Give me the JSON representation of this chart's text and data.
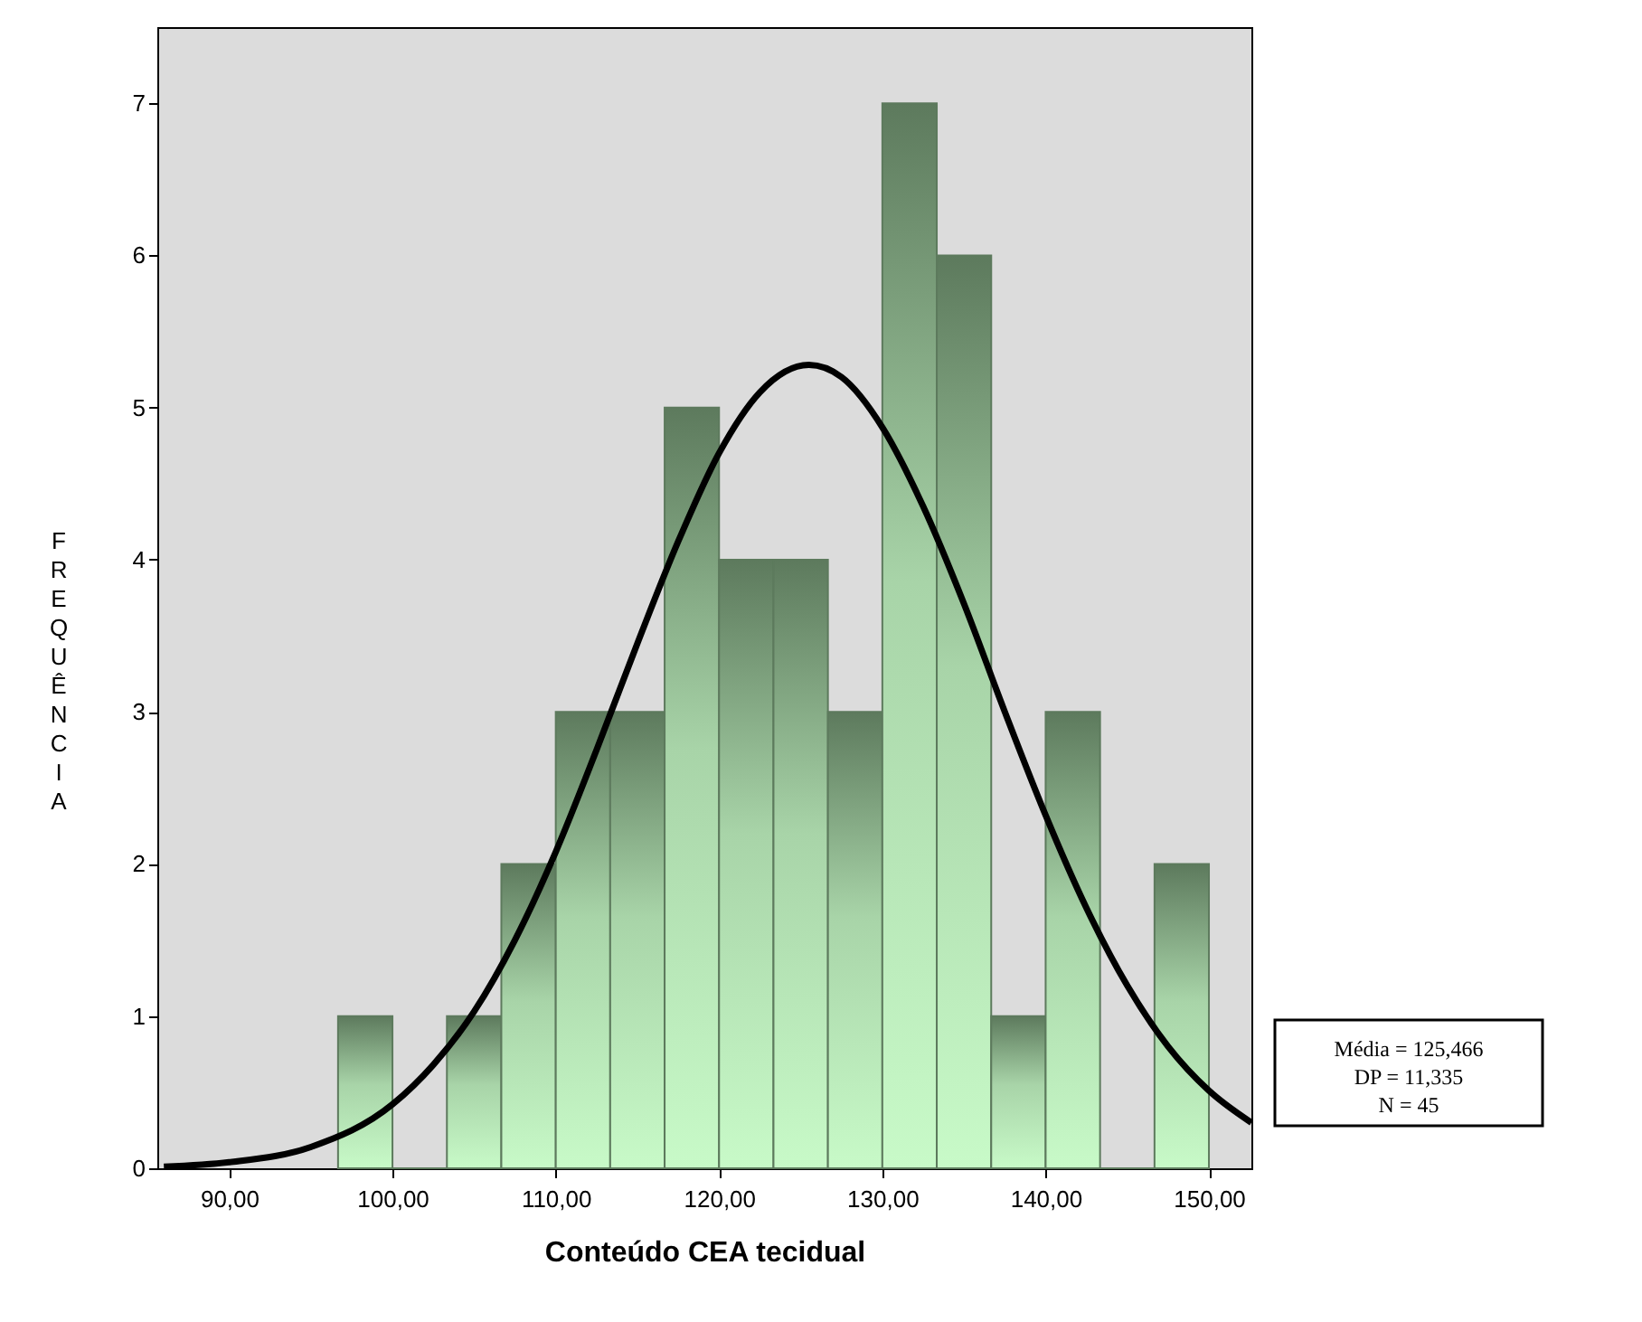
{
  "chart_data": {
    "type": "histogram",
    "xlabel": "Conteúdo CEA tecidual",
    "ylabel": "FREQUÊNCIA",
    "bins": [
      96.667,
      100,
      103.333,
      106.667,
      110,
      113.333,
      116.667,
      120,
      123.333,
      126.667,
      130,
      133.333,
      136.667,
      140,
      143.333,
      146.667,
      150
    ],
    "values": [
      1,
      0,
      1,
      2,
      3,
      3,
      5,
      4,
      4,
      3,
      7,
      6,
      1,
      3,
      0,
      2
    ],
    "color": "#5d7a5d",
    "series": [
      {
        "type": "line",
        "color": "#000000",
        "x": [
          86,
          90,
          95,
          100,
          102.5,
          105,
          107.5,
          110,
          112.5,
          115,
          117.5,
          120,
          122.5,
          125.5,
          127.5,
          130,
          132.5,
          135,
          137.5,
          140,
          142.5,
          145,
          147.5,
          150,
          152.6
        ],
        "values": [
          0.01,
          0.04,
          0.14,
          0.42,
          0.68,
          1.03,
          1.5,
          2.08,
          2.75,
          3.45,
          4.12,
          4.7,
          5.1,
          5.28,
          5.2,
          4.87,
          4.35,
          3.71,
          3.0,
          2.32,
          1.71,
          1.2,
          0.8,
          0.51,
          0.3
        ]
      }
    ],
    "xlim": [
      85.6,
      152.6
    ],
    "xticks": [
      {
        "value": 90,
        "label": "90,00"
      },
      {
        "value": 100,
        "label": "100,00"
      },
      {
        "value": 110,
        "label": "110,00"
      },
      {
        "value": 120,
        "label": "120,00"
      },
      {
        "value": 130,
        "label": "130,00"
      },
      {
        "value": 140,
        "label": "140,00"
      },
      {
        "value": 150,
        "label": "150,00"
      }
    ],
    "ylim": [
      0,
      7.5
    ],
    "yticks": [
      0,
      1,
      2,
      3,
      4,
      5,
      6,
      7
    ],
    "grid": false,
    "annotations": [
      "Média = 125,466",
      "DP = 11,335",
      "N = 45"
    ]
  }
}
